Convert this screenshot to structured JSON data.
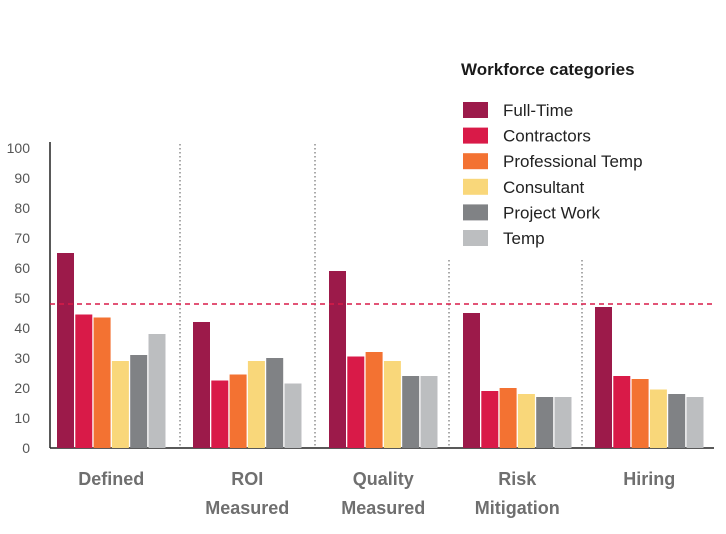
{
  "chart_data": {
    "type": "bar",
    "categories": [
      "Defined",
      "ROI Measured",
      "Quality Measured",
      "Risk Mitigation",
      "Hiring"
    ],
    "category_label_lines": [
      [
        "Defined"
      ],
      [
        "ROI",
        "Measured"
      ],
      [
        "Quality",
        "Measured"
      ],
      [
        "Risk",
        "Mitigation"
      ],
      [
        "Hiring"
      ]
    ],
    "legend_title": "Workforce categories",
    "legend_placement": "top-right",
    "series": [
      {
        "name": "Full-Time",
        "color": "#9c1a4a",
        "values": [
          65,
          42,
          59,
          45,
          47
        ]
      },
      {
        "name": "Contractors",
        "color": "#d91a48",
        "values": [
          44.5,
          22.5,
          30.5,
          19,
          24
        ]
      },
      {
        "name": "Professional Temp",
        "color": "#f37232",
        "values": [
          43.5,
          24.5,
          32,
          20,
          23
        ]
      },
      {
        "name": "Consultant",
        "color": "#f9d77a",
        "values": [
          29,
          29,
          29,
          18,
          19.5
        ]
      },
      {
        "name": "Project Work",
        "color": "#808285",
        "values": [
          31,
          30,
          24,
          17,
          18
        ]
      },
      {
        "name": "Temp",
        "color": "#bcbec0",
        "values": [
          38,
          21.5,
          24,
          17,
          17
        ]
      }
    ],
    "ylim": [
      0,
      100
    ],
    "yticks": [
      0,
      10,
      20,
      30,
      40,
      50,
      60,
      70,
      80,
      90,
      100
    ],
    "reference_line": {
      "value": 48,
      "color": "#d91a48",
      "style": "dashed"
    },
    "group_separators": "dotted vertical lines between categories",
    "grid": false,
    "xlabel": "",
    "ylabel": "",
    "title": ""
  }
}
